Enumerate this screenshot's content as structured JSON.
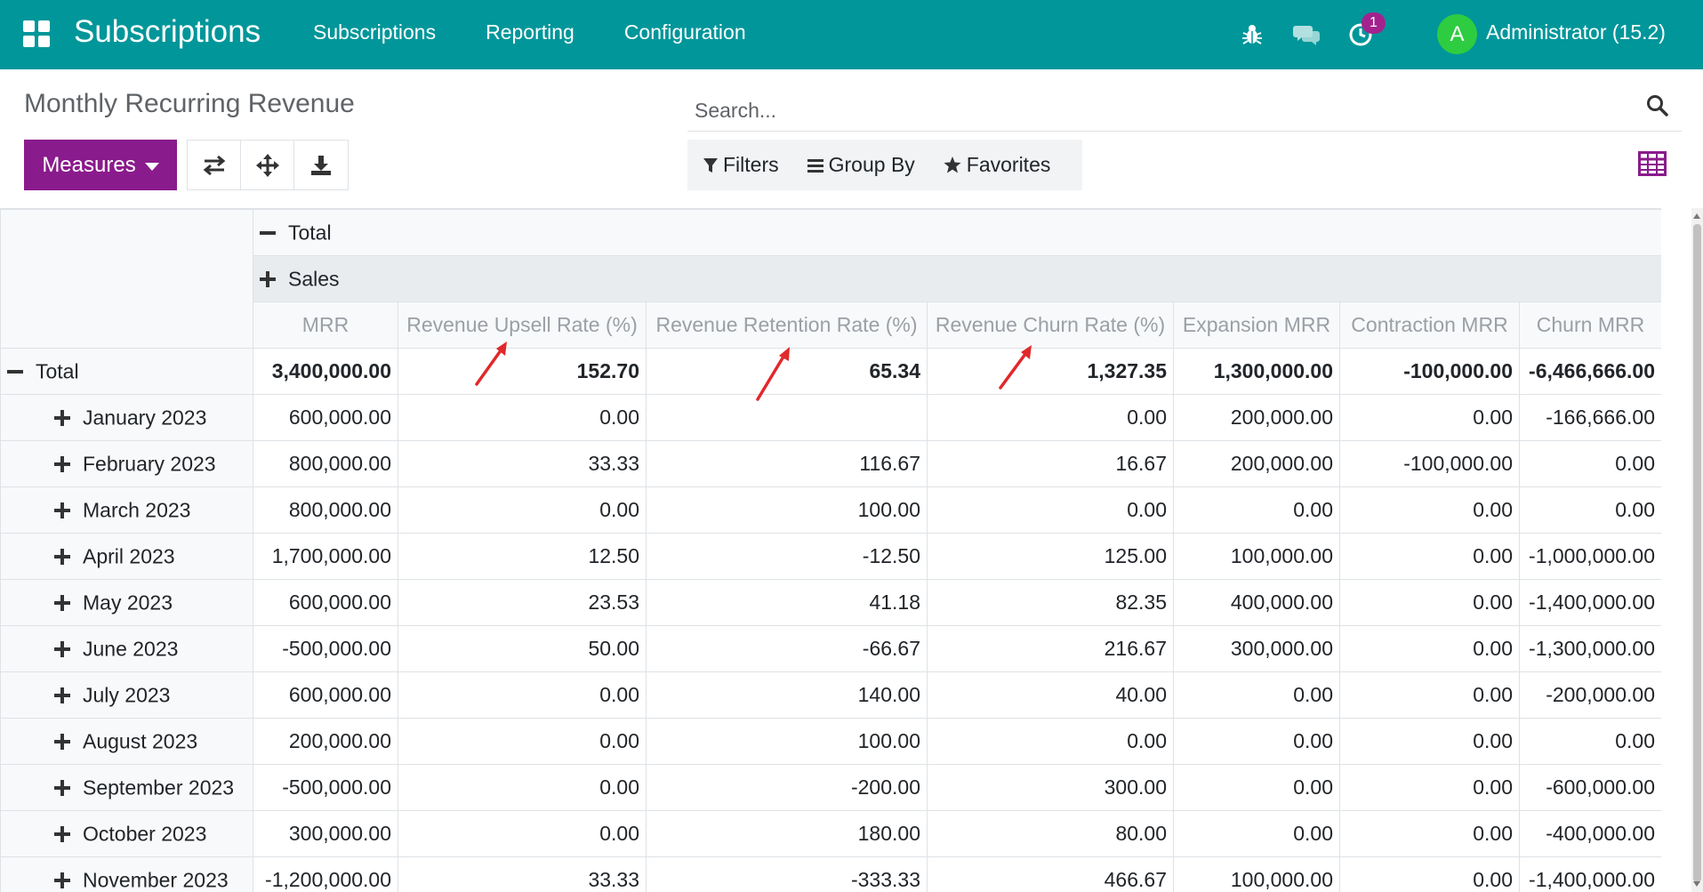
{
  "navbar": {
    "brand": "Subscriptions",
    "menu": [
      "Subscriptions",
      "Reporting",
      "Configuration"
    ],
    "activity_count": "1",
    "avatar_letter": "A",
    "user": "Administrator (15.2)"
  },
  "control": {
    "title": "Monthly Recurring Revenue",
    "measures_label": "Measures",
    "search_placeholder": "Search...",
    "filters_label": "Filters",
    "groupby_label": "Group By",
    "favorites_label": "Favorites"
  },
  "pivot": {
    "col_total": "Total",
    "col_group": "Sales",
    "measures": [
      "MRR",
      "Revenue Upsell Rate (%)",
      "Revenue Retention Rate (%)",
      "Revenue Churn Rate (%)",
      "Expansion MRR",
      "Contraction MRR",
      "Churn MRR"
    ],
    "total_row": {
      "label": "Total",
      "values": [
        "3,400,000.00",
        "152.70",
        "65.34",
        "1,327.35",
        "1,300,000.00",
        "-100,000.00",
        "-6,466,666.00"
      ]
    },
    "rows": [
      {
        "label": "January 2023",
        "values": [
          "600,000.00",
          "0.00",
          "",
          "0.00",
          "200,000.00",
          "0.00",
          "-166,666.00"
        ]
      },
      {
        "label": "February 2023",
        "values": [
          "800,000.00",
          "33.33",
          "116.67",
          "16.67",
          "200,000.00",
          "-100,000.00",
          "0.00"
        ]
      },
      {
        "label": "March 2023",
        "values": [
          "800,000.00",
          "0.00",
          "100.00",
          "0.00",
          "0.00",
          "0.00",
          "0.00"
        ]
      },
      {
        "label": "April 2023",
        "values": [
          "1,700,000.00",
          "12.50",
          "-12.50",
          "125.00",
          "100,000.00",
          "0.00",
          "-1,000,000.00"
        ]
      },
      {
        "label": "May 2023",
        "values": [
          "600,000.00",
          "23.53",
          "41.18",
          "82.35",
          "400,000.00",
          "0.00",
          "-1,400,000.00"
        ]
      },
      {
        "label": "June 2023",
        "values": [
          "-500,000.00",
          "50.00",
          "-66.67",
          "216.67",
          "300,000.00",
          "0.00",
          "-1,300,000.00"
        ]
      },
      {
        "label": "July 2023",
        "values": [
          "600,000.00",
          "0.00",
          "140.00",
          "40.00",
          "0.00",
          "0.00",
          "-200,000.00"
        ]
      },
      {
        "label": "August 2023",
        "values": [
          "200,000.00",
          "0.00",
          "100.00",
          "0.00",
          "0.00",
          "0.00",
          "0.00"
        ]
      },
      {
        "label": "September 2023",
        "values": [
          "-500,000.00",
          "0.00",
          "-200.00",
          "300.00",
          "0.00",
          "0.00",
          "-600,000.00"
        ]
      },
      {
        "label": "October 2023",
        "values": [
          "300,000.00",
          "0.00",
          "180.00",
          "80.00",
          "0.00",
          "0.00",
          "-400,000.00"
        ]
      },
      {
        "label": "November 2023",
        "values": [
          "-1,200,000.00",
          "33.33",
          "-333.33",
          "466.67",
          "100,000.00",
          "0.00",
          "-1,400,000.00"
        ]
      }
    ]
  },
  "colors": {
    "navbar": "#00969a",
    "primary": "#8a1b8c",
    "annotation_arrow": "#e0292b"
  }
}
